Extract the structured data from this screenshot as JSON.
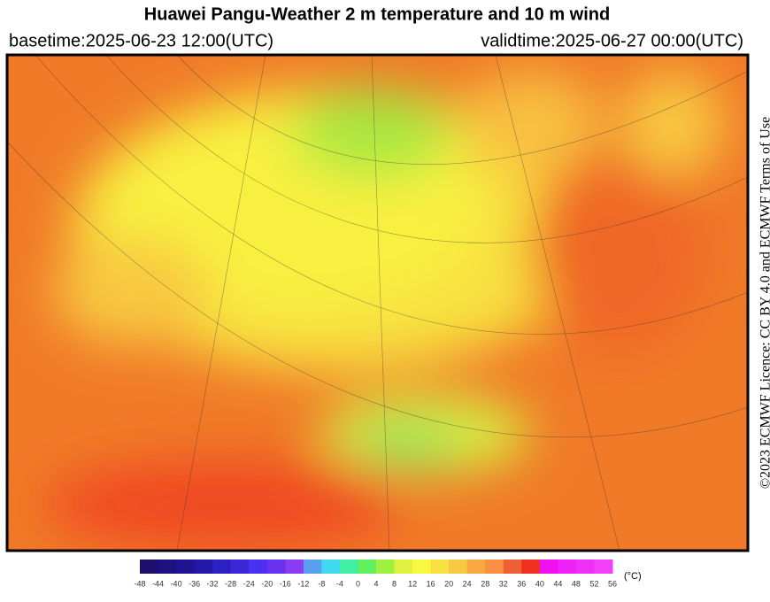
{
  "header": {
    "title": "Huawei Pangu-Weather  2 m temperature and 10 m wind",
    "basetime": "basetime:2025-06-23 12:00(UTC)",
    "validtime": "validtime:2025-06-27 00:00(UTC)"
  },
  "credit": "©2023 ECMWF Licence: CC BY 4.0 and ECMWF Terms of Use",
  "colorbar": {
    "unit": "(°C)",
    "ticks": [
      -48,
      -44,
      -40,
      -36,
      -32,
      -28,
      -24,
      -20,
      -16,
      -12,
      -8,
      -4,
      0,
      4,
      8,
      12,
      16,
      20,
      24,
      28,
      32,
      36,
      40,
      44,
      48,
      52,
      56
    ],
    "colors": [
      "#1c0f6e",
      "#1e1080",
      "#201394",
      "#2418a8",
      "#2d20c0",
      "#3a28d8",
      "#4a30f0",
      "#6a30f0",
      "#8c3cf0",
      "#5aa0f0",
      "#40d8f0",
      "#40f0a0",
      "#60f060",
      "#a0f040",
      "#e0f040",
      "#f8f840",
      "#f8e040",
      "#f8c840",
      "#f8a840",
      "#f89040",
      "#f06030",
      "#f03020",
      "#f010f0",
      "#f020f8",
      "#f030f8",
      "#f040f8"
    ]
  }
}
